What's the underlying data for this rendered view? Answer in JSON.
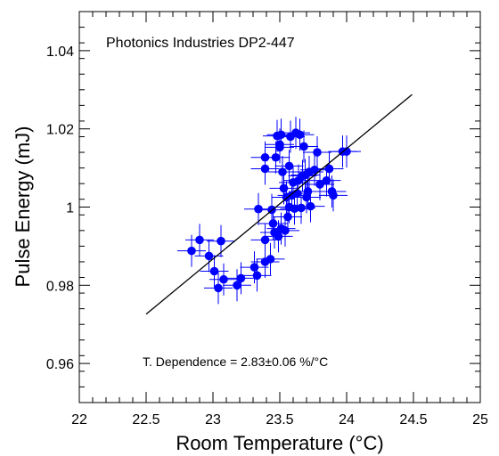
{
  "chart_data": {
    "type": "scatter",
    "title": "Photonics Industries DP2-447",
    "xlabel": "Room Temperature (°C)",
    "ylabel": "Pulse Energy (mJ)",
    "xlim": [
      22,
      25
    ],
    "ylim": [
      0.95,
      1.05
    ],
    "x_ticks": [
      22,
      22.5,
      23,
      23.5,
      24,
      24.5,
      25
    ],
    "x_tick_labels": [
      "22",
      "22.5",
      "23",
      "23.5",
      "24",
      "24.5",
      "25"
    ],
    "y_ticks": [
      0.96,
      0.98,
      1.0,
      1.02,
      1.04
    ],
    "y_tick_labels": [
      "0.96",
      "0.98",
      "1",
      "1.02",
      "1.04"
    ],
    "grid": false,
    "annotation": "T. Dependence = 2.83±0.06 %/°C",
    "marker_color": "#0000ff",
    "fit_line": {
      "x": [
        22.5,
        24.49
      ],
      "y": [
        0.9726,
        1.0288
      ]
    },
    "points": [
      {
        "x": 22.84,
        "y": 0.9888
      },
      {
        "x": 22.9,
        "y": 0.9916
      },
      {
        "x": 22.97,
        "y": 0.9875
      },
      {
        "x": 23.01,
        "y": 0.9836
      },
      {
        "x": 23.04,
        "y": 0.9793
      },
      {
        "x": 23.06,
        "y": 0.9913
      },
      {
        "x": 23.08,
        "y": 0.9815
      },
      {
        "x": 23.18,
        "y": 0.98
      },
      {
        "x": 23.21,
        "y": 0.9818
      },
      {
        "x": 23.31,
        "y": 0.9846
      },
      {
        "x": 23.33,
        "y": 0.9825
      },
      {
        "x": 23.34,
        "y": 0.9995
      },
      {
        "x": 23.39,
        "y": 0.986
      },
      {
        "x": 23.39,
        "y": 0.9916
      },
      {
        "x": 23.39,
        "y": 1.0098
      },
      {
        "x": 23.39,
        "y": 1.0127
      },
      {
        "x": 23.43,
        "y": 0.9867
      },
      {
        "x": 23.44,
        "y": 0.9993
      },
      {
        "x": 23.45,
        "y": 0.9958
      },
      {
        "x": 23.46,
        "y": 0.9935
      },
      {
        "x": 23.47,
        "y": 1.0127
      },
      {
        "x": 23.48,
        "y": 1.0182
      },
      {
        "x": 23.49,
        "y": 0.9925
      },
      {
        "x": 23.5,
        "y": 1.0153
      },
      {
        "x": 23.5,
        "y": 1.016
      },
      {
        "x": 23.51,
        "y": 0.9945
      },
      {
        "x": 23.51,
        "y": 1.0185
      },
      {
        "x": 23.52,
        "y": 1.009
      },
      {
        "x": 23.53,
        "y": 1.0048
      },
      {
        "x": 23.54,
        "y": 0.994
      },
      {
        "x": 23.55,
        "y": 1.0025
      },
      {
        "x": 23.56,
        "y": 0.9975
      },
      {
        "x": 23.57,
        "y": 1.0
      },
      {
        "x": 23.57,
        "y": 1.0105
      },
      {
        "x": 23.58,
        "y": 1.018
      },
      {
        "x": 23.59,
        "y": 1.003
      },
      {
        "x": 23.6,
        "y": 1.0063
      },
      {
        "x": 23.61,
        "y": 0.9996
      },
      {
        "x": 23.62,
        "y": 1.019
      },
      {
        "x": 23.63,
        "y": 1.0035
      },
      {
        "x": 23.64,
        "y": 1.0068
      },
      {
        "x": 23.65,
        "y": 1.0185
      },
      {
        "x": 23.66,
        "y": 0.9998
      },
      {
        "x": 23.67,
        "y": 1.008
      },
      {
        "x": 23.68,
        "y": 1.0155
      },
      {
        "x": 23.69,
        "y": 1.0082
      },
      {
        "x": 23.7,
        "y": 1.0025
      },
      {
        "x": 23.71,
        "y": 1.004
      },
      {
        "x": 23.72,
        "y": 1.009
      },
      {
        "x": 23.73,
        "y": 1.0002
      },
      {
        "x": 23.76,
        "y": 1.0095
      },
      {
        "x": 23.78,
        "y": 1.014
      },
      {
        "x": 23.8,
        "y": 1.0058
      },
      {
        "x": 23.85,
        "y": 1.0068
      },
      {
        "x": 23.87,
        "y": 1.0098
      },
      {
        "x": 23.89,
        "y": 1.004
      },
      {
        "x": 23.9,
        "y": 1.003
      },
      {
        "x": 23.97,
        "y": 1.0142
      },
      {
        "x": 24.0,
        "y": 1.0142
      }
    ]
  }
}
